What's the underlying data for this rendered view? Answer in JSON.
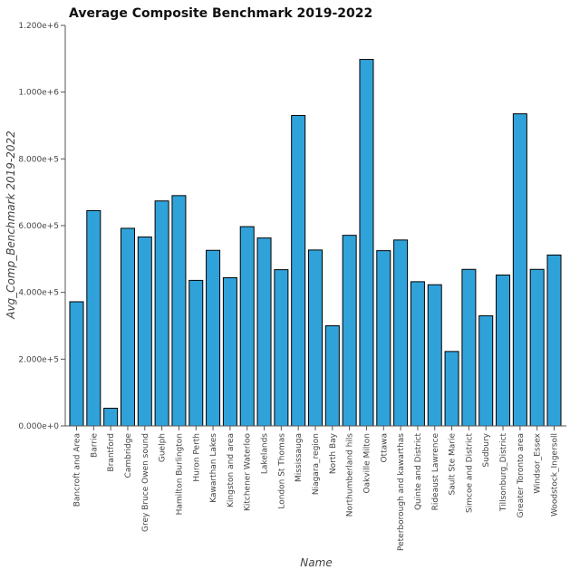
{
  "chart_data": {
    "type": "bar",
    "title": "Average Composite Benchmark 2019-2022",
    "xlabel": "Name",
    "ylabel": "Avg_Comp_Benchmark 2019-2022",
    "ylim": [
      0,
      1200000
    ],
    "yticks": [
      0,
      200000,
      400000,
      600000,
      800000,
      1000000,
      1200000
    ],
    "ytick_labels": [
      "0.000e+0",
      "2.000e+5",
      "4.000e+5",
      "6.000e+5",
      "8.000e+5",
      "1.000e+6",
      "1.200e+6"
    ],
    "grid": false,
    "bar_color": "#30a2da",
    "categories": [
      "Bancroft and Area",
      "Barrie",
      "Brantford",
      "Cambridge",
      "Grey Bruce Owen sound",
      "Guelph",
      "Hamilton Burlington",
      "Huron Perth",
      "Kawarthan Lakes",
      "Kingston and area",
      "Kitchener Waterloo",
      "Lakelands",
      "London St Thomas",
      "Mississauga",
      "Niagara_region",
      "North Bay",
      "Northumberland hils",
      "Oakville Milton",
      "Ottawa",
      "Peterborough and kawarthas",
      "Quinte and District",
      "Rideaust Lawrence",
      "Sault Ste Marie",
      "Simcoe and District",
      "Sudbury",
      "Tillsonburg_District",
      "Greater Toronto area",
      "Windsor_Essex",
      "Woodstock_Ingersoll"
    ],
    "values": [
      372000,
      645000,
      53000,
      592000,
      566000,
      674000,
      690000,
      436000,
      526000,
      444000,
      597000,
      563000,
      468000,
      930000,
      527000,
      300000,
      571000,
      1098000,
      525000,
      557000,
      432000,
      423000,
      223000,
      469000,
      330000,
      452000,
      935000,
      469000,
      512000
    ]
  }
}
